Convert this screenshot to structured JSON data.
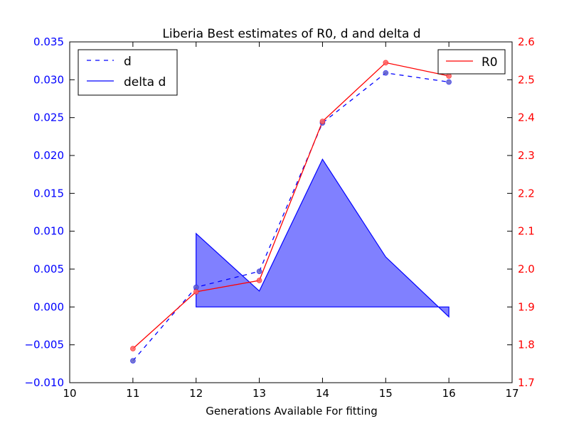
{
  "chart_data": {
    "type": "line",
    "title": "Liberia Best estimates of R0, d and delta d",
    "xlabel": "Generations Available For fitting",
    "x_axis": {
      "range": [
        10,
        17
      ],
      "ticks": [
        "10",
        "11",
        "12",
        "13",
        "14",
        "15",
        "16",
        "17"
      ]
    },
    "y_left": {
      "range": [
        -0.01,
        0.035
      ],
      "ticks": [
        "−0.010",
        "−0.005",
        "0.000",
        "0.005",
        "0.010",
        "0.015",
        "0.020",
        "0.025",
        "0.030",
        "0.035"
      ],
      "color": "#0000ff"
    },
    "y_right": {
      "range": [
        1.7,
        2.6
      ],
      "ticks": [
        "1.7",
        "1.8",
        "1.9",
        "2.0",
        "2.1",
        "2.2",
        "2.3",
        "2.4",
        "2.5",
        "2.6"
      ],
      "color": "#ff0000"
    },
    "grid": false,
    "series": [
      {
        "name": "d",
        "axis": "left",
        "style": "dashed",
        "color": "#0000ff",
        "x": [
          11,
          12,
          13,
          14,
          15,
          16
        ],
        "y": [
          -0.0071,
          0.0026,
          0.0047,
          0.0243,
          0.0309,
          0.0297
        ]
      },
      {
        "name": "delta d",
        "axis": "left",
        "style": "filled-area",
        "color": "#0000ff",
        "fill_color": "#8080ff",
        "x": [
          12,
          13,
          14,
          15,
          16
        ],
        "y": [
          0.0097,
          0.0021,
          0.0195,
          0.0066,
          -0.0013
        ]
      },
      {
        "name": "R0",
        "axis": "right",
        "style": "solid",
        "color": "#ff0000",
        "x": [
          11,
          12,
          13,
          14,
          15,
          16
        ],
        "y": [
          1.79,
          1.94,
          1.97,
          2.39,
          2.545,
          2.51
        ]
      }
    ],
    "legends": [
      {
        "placement": "top-left",
        "entries": [
          "d",
          "delta d"
        ]
      },
      {
        "placement": "top-right",
        "entries": [
          "R0"
        ]
      }
    ]
  }
}
